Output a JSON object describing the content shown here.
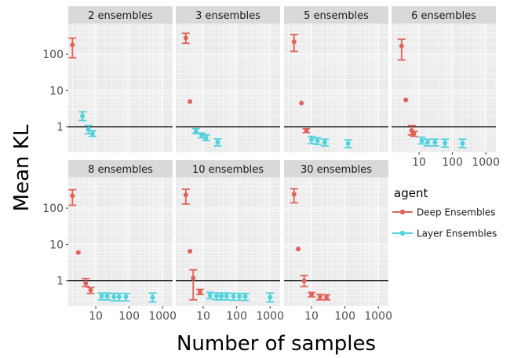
{
  "chart_data": {
    "type": "scatter",
    "xlabel": "Number of samples",
    "ylabel": "Mean KL",
    "x_scale": "log",
    "y_scale": "log",
    "xlim": [
      1.5,
      2000
    ],
    "ylim": [
      0.2,
      700
    ],
    "x_ticks": [
      10,
      100,
      1000
    ],
    "x_tick_labels": [
      "10",
      "100",
      "1000"
    ],
    "y_ticks": [
      1,
      10,
      100
    ],
    "y_tick_labels": [
      "1",
      "10",
      "100"
    ],
    "reference_line_y": 1,
    "legend": {
      "title": "agent",
      "placement": "right",
      "entries": [
        {
          "name": "Deep Ensembles",
          "color": "#e0635a"
        },
        {
          "name": "Layer Ensembles",
          "color": "#4fd2dc"
        }
      ]
    },
    "panels": [
      {
        "title": "2 ensembles",
        "deep": [
          {
            "x": 2,
            "y": 180,
            "lo": 80,
            "hi": 280
          }
        ],
        "layer": [
          {
            "x": 4,
            "y": 2.0,
            "lo": 1.5,
            "hi": 2.6
          },
          {
            "x": 6,
            "y": 0.85,
            "lo": 0.65,
            "hi": 1.1
          },
          {
            "x": 8,
            "y": 0.65,
            "lo": 0.55,
            "hi": 0.78
          }
        ]
      },
      {
        "title": "3 ensembles",
        "deep": [
          {
            "x": 3,
            "y": 280,
            "lo": 200,
            "hi": 380
          },
          {
            "x": 4,
            "y": 5,
            "lo": null,
            "hi": null
          }
        ],
        "layer": [
          {
            "x": 6,
            "y": 0.75,
            "lo": 0.65,
            "hi": 0.9
          },
          {
            "x": 9,
            "y": 0.6,
            "lo": 0.5,
            "hi": 0.68
          },
          {
            "x": 12,
            "y": 0.5,
            "lo": 0.42,
            "hi": 0.6
          },
          {
            "x": 27,
            "y": 0.38,
            "lo": 0.3,
            "hi": 0.47
          }
        ]
      },
      {
        "title": "5 ensembles",
        "deep": [
          {
            "x": 3,
            "y": 220,
            "lo": 120,
            "hi": 350
          },
          {
            "x": 5,
            "y": 4.5,
            "lo": null,
            "hi": null
          },
          {
            "x": 7,
            "y": 0.8,
            "lo": 0.7,
            "hi": 0.9
          }
        ],
        "layer": [
          {
            "x": 10,
            "y": 0.45,
            "lo": 0.35,
            "hi": 0.55
          },
          {
            "x": 15,
            "y": 0.42,
            "lo": 0.33,
            "hi": 0.5
          },
          {
            "x": 25,
            "y": 0.38,
            "lo": 0.3,
            "hi": 0.46
          },
          {
            "x": 125,
            "y": 0.35,
            "lo": 0.27,
            "hi": 0.44
          }
        ]
      },
      {
        "title": "6 ensembles",
        "deep": [
          {
            "x": 3,
            "y": 170,
            "lo": 70,
            "hi": 260
          },
          {
            "x": 4,
            "y": 5.5,
            "lo": null,
            "hi": null
          },
          {
            "x": 6,
            "y": 0.8,
            "lo": 0.6,
            "hi": 1.1
          },
          {
            "x": 7,
            "y": 0.65,
            "lo": 0.55,
            "hi": 0.75
          }
        ],
        "layer": [
          {
            "x": 12,
            "y": 0.42,
            "lo": 0.34,
            "hi": 0.52
          },
          {
            "x": 18,
            "y": 0.38,
            "lo": 0.3,
            "hi": 0.46
          },
          {
            "x": 30,
            "y": 0.38,
            "lo": 0.3,
            "hi": 0.46
          },
          {
            "x": 60,
            "y": 0.36,
            "lo": 0.28,
            "hi": 0.46
          },
          {
            "x": 200,
            "y": 0.35,
            "lo": 0.27,
            "hi": 0.46
          }
        ]
      },
      {
        "title": "8 ensembles",
        "deep": [
          {
            "x": 2,
            "y": 220,
            "lo": 120,
            "hi": 320
          },
          {
            "x": 3,
            "y": 6,
            "lo": null,
            "hi": null
          },
          {
            "x": 5,
            "y": 0.85,
            "lo": 0.7,
            "hi": 1.15
          },
          {
            "x": 7,
            "y": 0.55,
            "lo": 0.45,
            "hi": 0.65
          }
        ],
        "layer": [
          {
            "x": 15,
            "y": 0.38,
            "lo": 0.3,
            "hi": 0.46
          },
          {
            "x": 22,
            "y": 0.38,
            "lo": 0.3,
            "hi": 0.46
          },
          {
            "x": 35,
            "y": 0.36,
            "lo": 0.28,
            "hi": 0.45
          },
          {
            "x": 50,
            "y": 0.36,
            "lo": 0.28,
            "hi": 0.45
          },
          {
            "x": 80,
            "y": 0.36,
            "lo": 0.28,
            "hi": 0.45
          },
          {
            "x": 500,
            "y": 0.35,
            "lo": 0.26,
            "hi": 0.46
          }
        ]
      },
      {
        "title": "10 ensembles",
        "deep": [
          {
            "x": 3,
            "y": 230,
            "lo": 130,
            "hi": 330
          },
          {
            "x": 4,
            "y": 6.5,
            "lo": null,
            "hi": null
          },
          {
            "x": 5,
            "y": 1.2,
            "lo": 0.3,
            "hi": 2.0
          },
          {
            "x": 8,
            "y": 0.5,
            "lo": 0.42,
            "hi": 0.58
          }
        ],
        "layer": [
          {
            "x": 16,
            "y": 0.4,
            "lo": 0.32,
            "hi": 0.48
          },
          {
            "x": 25,
            "y": 0.38,
            "lo": 0.3,
            "hi": 0.46
          },
          {
            "x": 35,
            "y": 0.38,
            "lo": 0.3,
            "hi": 0.46
          },
          {
            "x": 50,
            "y": 0.38,
            "lo": 0.3,
            "hi": 0.46
          },
          {
            "x": 80,
            "y": 0.37,
            "lo": 0.29,
            "hi": 0.45
          },
          {
            "x": 120,
            "y": 0.37,
            "lo": 0.29,
            "hi": 0.45
          },
          {
            "x": 180,
            "y": 0.37,
            "lo": 0.29,
            "hi": 0.45
          },
          {
            "x": 1000,
            "y": 0.35,
            "lo": 0.26,
            "hi": 0.46
          }
        ]
      },
      {
        "title": "30 ensembles",
        "deep": [
          {
            "x": 3,
            "y": 240,
            "lo": 140,
            "hi": 340
          },
          {
            "x": 4,
            "y": 7.5,
            "lo": null,
            "hi": null
          },
          {
            "x": 6,
            "y": 1.0,
            "lo": 0.7,
            "hi": 1.4
          },
          {
            "x": 10,
            "y": 0.42,
            "lo": 0.36,
            "hi": 0.48
          },
          {
            "x": 18,
            "y": 0.36,
            "lo": 0.3,
            "hi": 0.42
          },
          {
            "x": 28,
            "y": 0.35,
            "lo": 0.3,
            "hi": 0.41
          }
        ],
        "layer": []
      }
    ]
  }
}
